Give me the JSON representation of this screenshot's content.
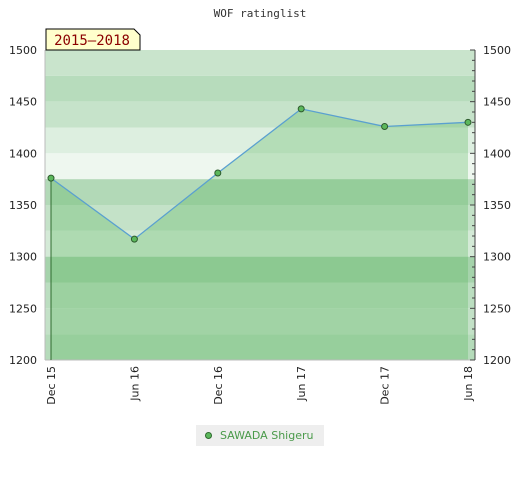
{
  "title": "WOF ratinglist",
  "period_badge": "2015–2018",
  "legend": {
    "label": "SAWADA Shigeru"
  },
  "colors": {
    "line": "#5aa0d0",
    "marker": "#5cb85c",
    "area": "#4caf50"
  },
  "chart_data": {
    "type": "area",
    "title": "WOF ratinglist",
    "x": [
      "Dec 15",
      "Jun 16",
      "Dec 16",
      "Jun 17",
      "Dec 17",
      "Jun 18"
    ],
    "series": [
      {
        "name": "SAWADA Shigeru",
        "values": [
          1376,
          1317,
          1381,
          1443,
          1426,
          1430
        ]
      }
    ],
    "ylim": [
      1200,
      1500
    ],
    "y_ticks": [
      1200,
      1250,
      1300,
      1350,
      1400,
      1450,
      1500
    ],
    "y_axis_both_sides": true,
    "legend_position": "bottom"
  }
}
